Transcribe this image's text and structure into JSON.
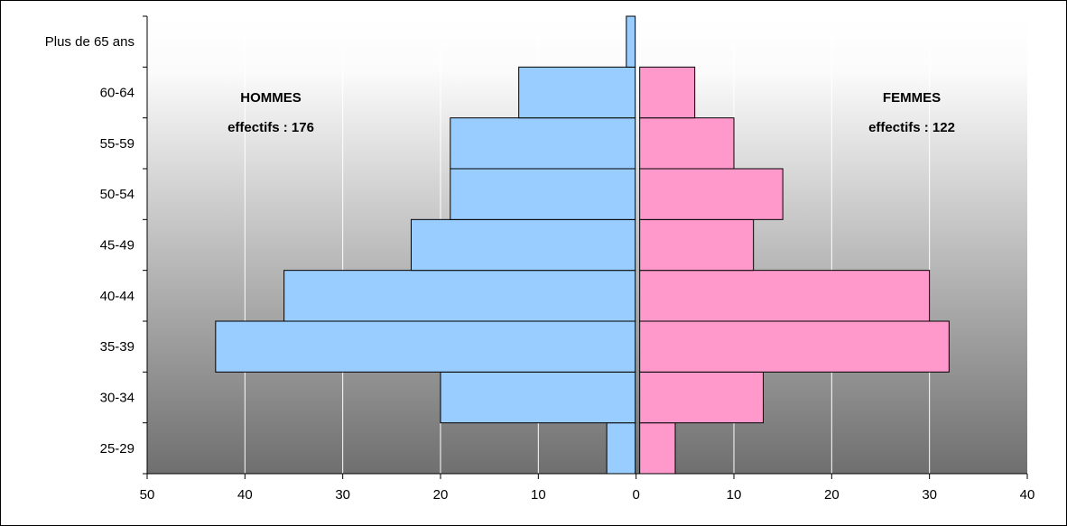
{
  "chart_data": {
    "type": "bar",
    "orientation": "horizontal",
    "layout": "population-pyramid",
    "title": "",
    "xlabel": "",
    "ylabel": "",
    "categories": [
      "25-29",
      "30-34",
      "35-39",
      "40-44",
      "45-49",
      "50-54",
      "55-59",
      "60-64",
      "Plus de 65 ans"
    ],
    "series": [
      {
        "name": "HOMMES",
        "annotation": "effectifs : 176",
        "side": "left",
        "color": "#99ccff",
        "values": [
          3,
          20,
          43,
          36,
          23,
          19,
          19,
          12,
          1
        ]
      },
      {
        "name": "FEMMES",
        "annotation": "effectifs : 122",
        "side": "right",
        "color": "#ff99cc",
        "values": [
          4,
          13,
          32,
          30,
          12,
          15,
          10,
          6,
          0
        ]
      }
    ],
    "xlim": [
      -50,
      40
    ],
    "x_ticks": [
      -50,
      -40,
      -30,
      -20,
      -10,
      0,
      10,
      20,
      30,
      40
    ],
    "x_tick_labels": [
      "50",
      "40",
      "30",
      "20",
      "10",
      "0",
      "10",
      "20",
      "30",
      "40"
    ],
    "grid": "vertical",
    "background": "gradient white to gray",
    "legend": "none"
  }
}
